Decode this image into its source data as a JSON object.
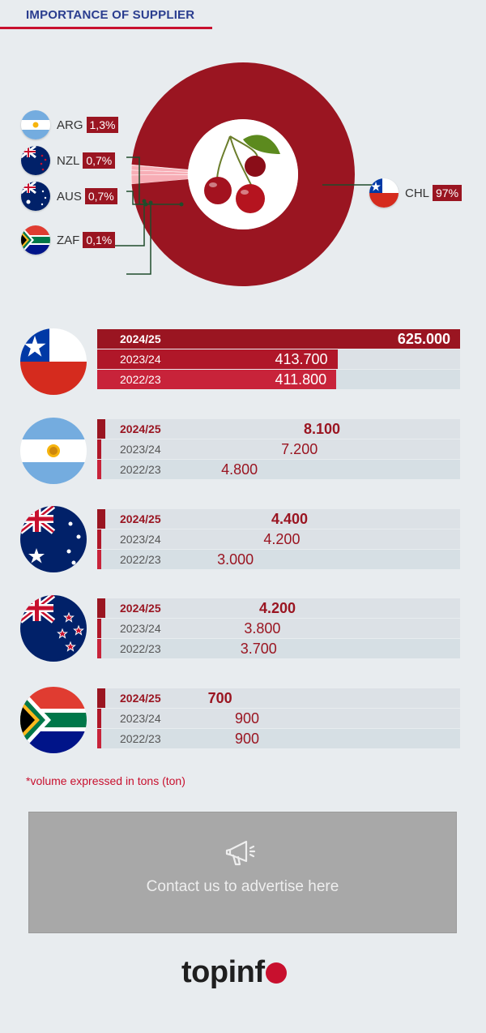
{
  "header": {
    "title": "IMPORTANCE OF SUPPLIER"
  },
  "colors": {
    "primary": "#9a1521",
    "accent": "#c8102e",
    "title": "#2a3d8f",
    "background": "#e8ecef"
  },
  "chart_data": [
    {
      "type": "pie",
      "categories": [
        "CHL",
        "ARG",
        "NZL",
        "AUS",
        "ZAF"
      ],
      "values": [
        97,
        1.3,
        0.7,
        0.7,
        0.1
      ],
      "labels": [
        "97%",
        "1,3%",
        "0,7%",
        "0,7%",
        "0,1%"
      ],
      "title": "IMPORTANCE OF SUPPLIER"
    },
    {
      "type": "bar",
      "categories": [
        "CHL",
        "ARG",
        "AUS",
        "NZL",
        "ZAF"
      ],
      "series": [
        {
          "name": "2024/25",
          "values": [
            625000,
            8100,
            4400,
            4200,
            700
          ],
          "labels": [
            "625.000",
            "8.100",
            "4.400",
            "4.200",
            "700"
          ]
        },
        {
          "name": "2023/24",
          "values": [
            413700,
            7200,
            4200,
            3800,
            900
          ],
          "labels": [
            "413.700",
            "7.200",
            "4.200",
            "3.800",
            "900"
          ]
        },
        {
          "name": "2022/23",
          "values": [
            411800,
            4800,
            3000,
            3700,
            900
          ],
          "labels": [
            "411.800",
            "4.800",
            "3.000",
            "3.700",
            "900"
          ]
        }
      ],
      "xlim": [
        0,
        625000
      ]
    }
  ],
  "footnote": "*volume expressed in tons (ton)",
  "ad": {
    "text": "Contact us to advertise here",
    "icon": "megaphone-icon"
  },
  "logo": {
    "text": "topinf",
    "icon": "apple-icon"
  }
}
